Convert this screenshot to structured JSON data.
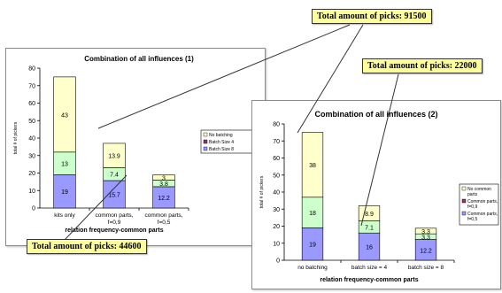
{
  "colors": {
    "no_batching": "#ffffcc",
    "batch4": "#ccffcc",
    "batch8": "#9999ff",
    "callout": "#ffff99"
  },
  "callouts": {
    "total1": "Total amount of picks: 91500",
    "total2": "Total amount of picks: 22000",
    "total3": "Total amount of picks: 44600"
  },
  "chart_data": [
    {
      "type": "bar",
      "stacked": true,
      "title": "Combination of all influences (1)",
      "xlabel": "relation frequency-common parts",
      "ylabel": "total # of pickers",
      "ylim": [
        0,
        80
      ],
      "yticks": [
        0,
        10,
        20,
        30,
        40,
        50,
        60,
        70,
        80
      ],
      "categories": [
        "kits only",
        "common parts, f=0,9",
        "common parts, f=0,5"
      ],
      "category_lines": [
        [
          "kits only"
        ],
        [
          "common parts,",
          "f=0,9"
        ],
        [
          "common parts,",
          "f=0,5"
        ]
      ],
      "series": [
        {
          "name": "Batch Size 8",
          "color": "#9999ff",
          "values": [
            19,
            15.7,
            12.2
          ],
          "labels": [
            "19",
            "15.7",
            "12.2"
          ]
        },
        {
          "name": "Batch Size 4",
          "color": "#ccffcc",
          "values": [
            13,
            7.4,
            3.8
          ],
          "labels": [
            "13",
            "7.4",
            "3.8"
          ]
        },
        {
          "name": "No batching",
          "color": "#ffffcc",
          "values": [
            43,
            13.9,
            3
          ],
          "labels": [
            "43",
            "13.9",
            "3"
          ]
        }
      ],
      "legend": [
        "No batching",
        "Batch Size 4",
        "Batch Size 8"
      ],
      "legend_colors": [
        "#ffffcc",
        "#993366",
        "#9999ff"
      ],
      "legend_position": "right"
    },
    {
      "type": "bar",
      "stacked": true,
      "title": "Combination of all influences (2)",
      "xlabel": "relation frequency-common parts",
      "ylabel": "total # of pickers",
      "ylim": [
        0,
        80
      ],
      "yticks": [
        0,
        10,
        20,
        30,
        40,
        50,
        60,
        70,
        80
      ],
      "categories": [
        "no batching",
        "batch size = 4",
        "batch size = 8"
      ],
      "category_lines": [
        [
          "no batching"
        ],
        [
          "batch size = 4"
        ],
        [
          "batch size = 8"
        ]
      ],
      "series": [
        {
          "name": "Common parts, f=0,5",
          "color": "#9999ff",
          "values": [
            19,
            16,
            12.2
          ],
          "labels": [
            "19",
            "16",
            "12.2"
          ]
        },
        {
          "name": "Common parts, f=0,9",
          "color": "#ccffcc",
          "values": [
            18,
            7.1,
            3.3
          ],
          "labels": [
            "18",
            "7.1",
            "3.3"
          ]
        },
        {
          "name": "No common parts",
          "color": "#ffffcc",
          "values": [
            38,
            8.9,
            3.3
          ],
          "labels": [
            "38",
            "8.9",
            "3.3"
          ]
        }
      ],
      "legend": [
        "No common parts",
        "Common parts, f=0,9",
        "Common parts, f=0,5"
      ],
      "legend_lines": [
        [
          "No common",
          "parts"
        ],
        [
          "Common parts,",
          "f=0,9"
        ],
        [
          "Common parts,",
          "f=0,5"
        ]
      ],
      "legend_colors": [
        "#ffffcc",
        "#993366",
        "#9999ff"
      ],
      "legend_position": "right"
    }
  ]
}
